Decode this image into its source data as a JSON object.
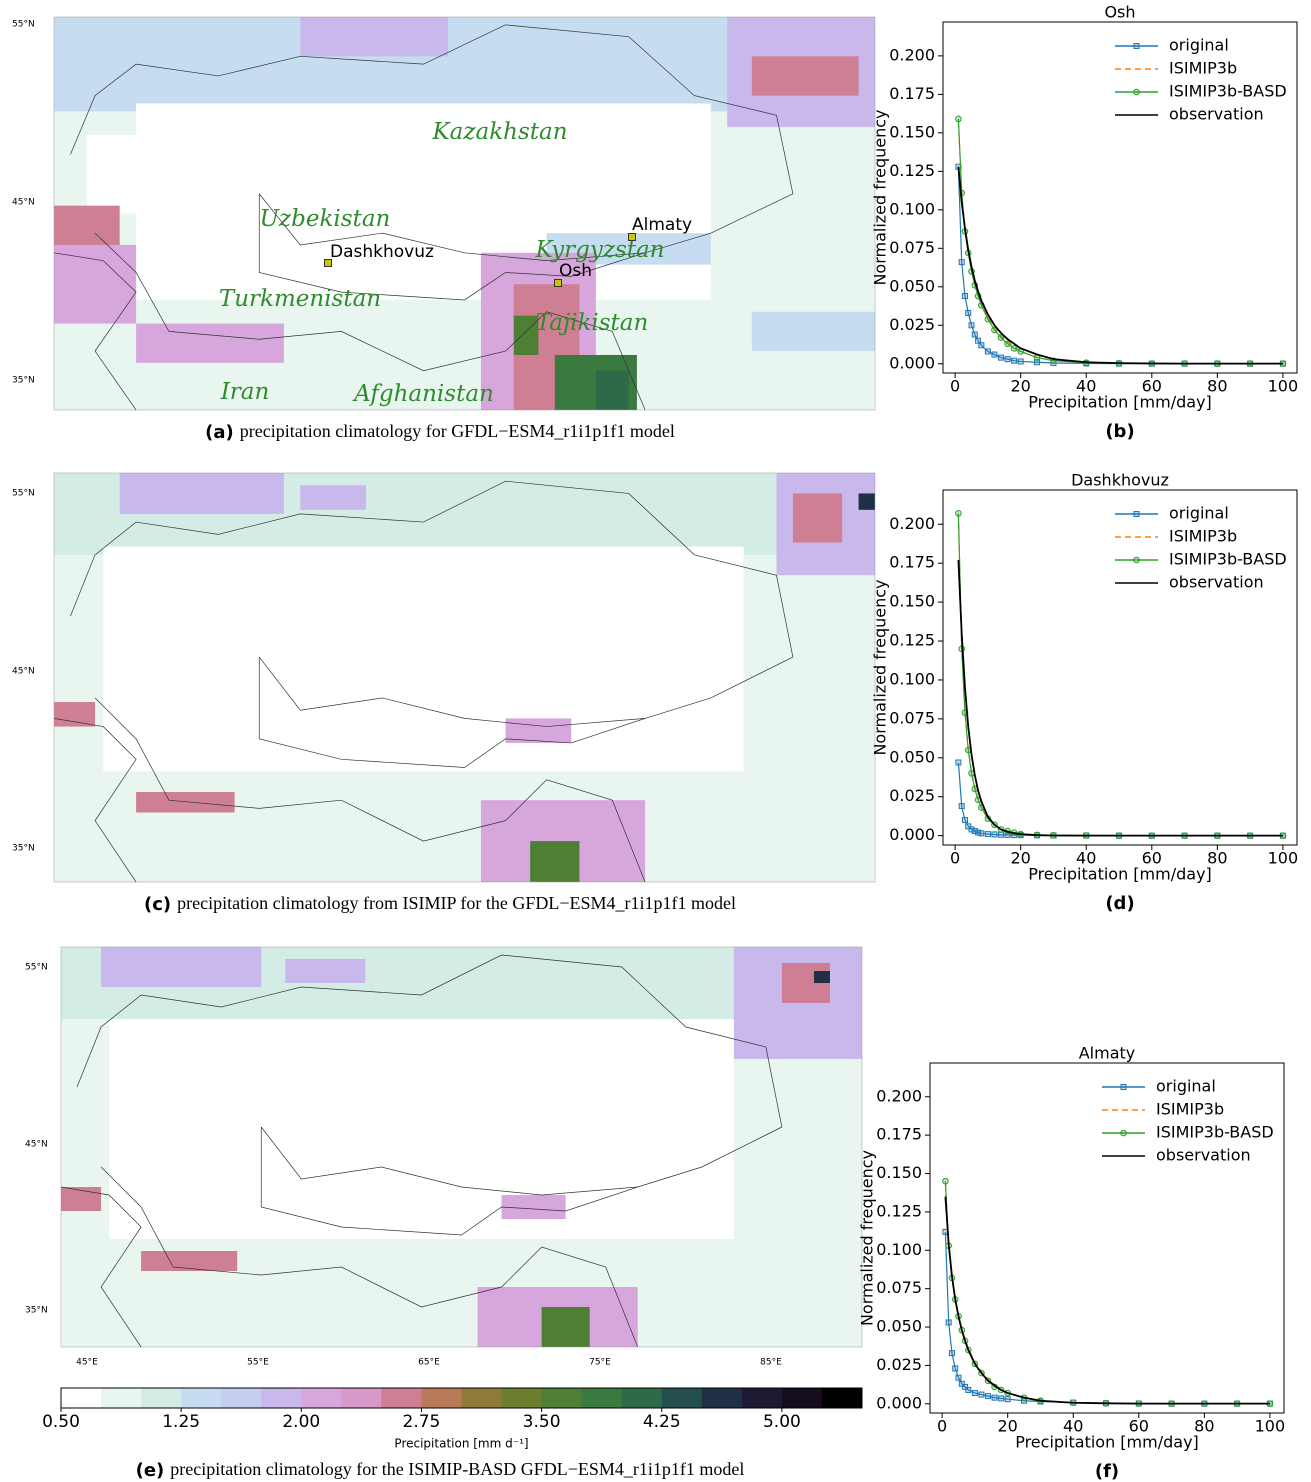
{
  "chart_data": [
    {
      "type": "line",
      "title": "Osh",
      "xlabel": "Precipitation [mm/day]",
      "ylabel": "Normalized frequency",
      "panel": "(b)",
      "x": [
        1,
        2,
        3,
        4,
        5,
        6,
        7,
        8,
        10,
        12,
        14,
        16,
        18,
        20,
        25,
        30,
        40,
        50,
        60,
        70,
        80,
        90,
        100
      ],
      "xlim": [
        -3.7,
        104.3
      ],
      "ylim": [
        -0.006,
        0.222
      ],
      "xticks": [
        0,
        20,
        40,
        60,
        80,
        100
      ],
      "yticks": [
        {
          "value": 0,
          "label": "0.000"
        },
        {
          "value": 0.025,
          "label": "0.025"
        },
        {
          "value": 0.05,
          "label": "0.050"
        },
        {
          "value": 0.075,
          "label": "0.075"
        },
        {
          "value": 0.1,
          "label": "0.100"
        },
        {
          "value": 0.125,
          "label": "0.125"
        },
        {
          "value": 0.15,
          "label": "0.150"
        },
        {
          "value": 0.175,
          "label": "0.175"
        },
        {
          "value": 0.2,
          "label": "0.200"
        }
      ],
      "legend": "upper right",
      "series": [
        {
          "name": "original",
          "color": "#1f77b4",
          "marker": "square",
          "dash": false,
          "values": [
            0.128,
            0.066,
            0.044,
            0.033,
            0.025,
            0.019,
            0.015,
            0.012,
            0.008,
            0.006,
            0.004,
            0.003,
            0.002,
            0.0015,
            0.001,
            0.0005,
            0.0002,
            0.0001,
            0.0001,
            0.0001,
            0.0001,
            0.0001,
            0.0001
          ]
        },
        {
          "name": "ISIMIP3b",
          "color": "#ff7f0e",
          "marker": null,
          "dash": true,
          "values": [
            0.157,
            0.112,
            0.087,
            0.073,
            0.061,
            0.052,
            0.045,
            0.039,
            0.03,
            0.023,
            0.018,
            0.014,
            0.011,
            0.008,
            0.004,
            0.002,
            0.0007,
            0.0003,
            0.0001,
            0.0001,
            0.0001,
            0.0001,
            0.0001
          ]
        },
        {
          "name": "ISIMIP3b-BASD",
          "color": "#2ca02c",
          "marker": "circle",
          "dash": false,
          "values": [
            0.159,
            0.111,
            0.086,
            0.072,
            0.06,
            0.051,
            0.044,
            0.038,
            0.029,
            0.022,
            0.017,
            0.013,
            0.01,
            0.008,
            0.004,
            0.002,
            0.0007,
            0.0003,
            0.0001,
            0.0001,
            0.0001,
            0.0001,
            0.0001
          ]
        },
        {
          "name": "observation",
          "color": "#000000",
          "marker": null,
          "dash": false,
          "values": [
            0.128,
            0.105,
            0.088,
            0.074,
            0.063,
            0.054,
            0.047,
            0.041,
            0.032,
            0.025,
            0.02,
            0.016,
            0.013,
            0.01,
            0.006,
            0.003,
            0.001,
            0.0004,
            0.0002,
            0.0001,
            0.0001,
            0.0001,
            0.0001
          ]
        }
      ]
    },
    {
      "type": "line",
      "title": "Dashkhovuz",
      "xlabel": "Precipitation [mm/day]",
      "ylabel": "Normalized frequency",
      "panel": "(d)",
      "x": [
        1,
        2,
        3,
        4,
        5,
        6,
        7,
        8,
        10,
        12,
        14,
        16,
        18,
        20,
        25,
        30,
        40,
        50,
        60,
        70,
        80,
        90,
        100
      ],
      "xlim": [
        -3.7,
        104.3
      ],
      "ylim": [
        -0.006,
        0.222
      ],
      "xticks": [
        0,
        20,
        40,
        60,
        80,
        100
      ],
      "yticks": [
        {
          "value": 0,
          "label": "0.000"
        },
        {
          "value": 0.025,
          "label": "0.025"
        },
        {
          "value": 0.05,
          "label": "0.050"
        },
        {
          "value": 0.075,
          "label": "0.075"
        },
        {
          "value": 0.1,
          "label": "0.100"
        },
        {
          "value": 0.125,
          "label": "0.125"
        },
        {
          "value": 0.15,
          "label": "0.150"
        },
        {
          "value": 0.175,
          "label": "0.175"
        },
        {
          "value": 0.2,
          "label": "0.200"
        }
      ],
      "legend": "upper right",
      "series": [
        {
          "name": "original",
          "color": "#1f77b4",
          "marker": "square",
          "dash": false,
          "values": [
            0.047,
            0.019,
            0.01,
            0.006,
            0.004,
            0.003,
            0.002,
            0.0015,
            0.001,
            0.0008,
            0.0006,
            0.0005,
            0.0004,
            0.0003,
            0.0002,
            0.0001,
            0.0001,
            0,
            0,
            0,
            0,
            0,
            0
          ]
        },
        {
          "name": "ISIMIP3b",
          "color": "#ff7f0e",
          "marker": null,
          "dash": true,
          "values": [
            0.206,
            0.121,
            0.08,
            0.056,
            0.041,
            0.031,
            0.024,
            0.018,
            0.011,
            0.007,
            0.004,
            0.003,
            0.002,
            0.001,
            0.0005,
            0.0002,
            0.0001,
            0,
            0,
            0,
            0,
            0,
            0
          ]
        },
        {
          "name": "ISIMIP3b-BASD",
          "color": "#2ca02c",
          "marker": "circle",
          "dash": false,
          "values": [
            0.207,
            0.12,
            0.079,
            0.055,
            0.04,
            0.03,
            0.023,
            0.018,
            0.011,
            0.007,
            0.004,
            0.003,
            0.002,
            0.001,
            0.0005,
            0.0002,
            0.0001,
            0,
            0,
            0,
            0,
            0,
            0
          ]
        },
        {
          "name": "observation",
          "color": "#000000",
          "marker": null,
          "dash": false,
          "values": [
            0.177,
            0.13,
            0.095,
            0.07,
            0.052,
            0.039,
            0.029,
            0.022,
            0.012,
            0.007,
            0.004,
            0.0025,
            0.0015,
            0.001,
            0.0003,
            0.0001,
            0,
            0,
            0,
            0,
            0,
            0,
            0
          ]
        }
      ]
    },
    {
      "type": "line",
      "title": "Almaty",
      "xlabel": "Precipitation [mm/day]",
      "ylabel": "Normalized frequency",
      "panel": "(f)",
      "x": [
        1,
        2,
        3,
        4,
        5,
        6,
        7,
        8,
        10,
        12,
        14,
        16,
        18,
        20,
        25,
        30,
        40,
        50,
        60,
        70,
        80,
        90,
        100
      ],
      "xlim": [
        -3.7,
        104.3
      ],
      "ylim": [
        -0.006,
        0.222
      ],
      "xticks": [
        0,
        20,
        40,
        60,
        80,
        100
      ],
      "yticks": [
        {
          "value": 0,
          "label": "0.000"
        },
        {
          "value": 0.025,
          "label": "0.025"
        },
        {
          "value": 0.05,
          "label": "0.050"
        },
        {
          "value": 0.075,
          "label": "0.075"
        },
        {
          "value": 0.1,
          "label": "0.100"
        },
        {
          "value": 0.125,
          "label": "0.125"
        },
        {
          "value": 0.15,
          "label": "0.150"
        },
        {
          "value": 0.175,
          "label": "0.175"
        },
        {
          "value": 0.2,
          "label": "0.200"
        }
      ],
      "legend": "upper right",
      "series": [
        {
          "name": "original",
          "color": "#1f77b4",
          "marker": "square",
          "dash": false,
          "values": [
            0.112,
            0.053,
            0.033,
            0.023,
            0.017,
            0.013,
            0.011,
            0.009,
            0.007,
            0.006,
            0.005,
            0.004,
            0.0035,
            0.003,
            0.002,
            0.0015,
            0.0008,
            0.0004,
            0.0002,
            0.0001,
            0.0001,
            0.0001,
            0.0001
          ]
        },
        {
          "name": "ISIMIP3b",
          "color": "#ff7f0e",
          "marker": null,
          "dash": true,
          "values": [
            0.143,
            0.104,
            0.083,
            0.069,
            0.058,
            0.049,
            0.042,
            0.036,
            0.027,
            0.021,
            0.016,
            0.012,
            0.009,
            0.007,
            0.004,
            0.002,
            0.0007,
            0.0003,
            0.0001,
            0.0001,
            0.0001,
            0.0001,
            0.0001
          ]
        },
        {
          "name": "ISIMIP3b-BASD",
          "color": "#2ca02c",
          "marker": "circle",
          "dash": false,
          "values": [
            0.145,
            0.103,
            0.082,
            0.068,
            0.057,
            0.048,
            0.041,
            0.035,
            0.026,
            0.02,
            0.015,
            0.011,
            0.009,
            0.007,
            0.004,
            0.002,
            0.0007,
            0.0003,
            0.0001,
            0.0001,
            0.0001,
            0.0001,
            0.0001
          ]
        },
        {
          "name": "observation",
          "color": "#000000",
          "marker": null,
          "dash": false,
          "values": [
            0.135,
            0.104,
            0.083,
            0.068,
            0.057,
            0.048,
            0.041,
            0.035,
            0.026,
            0.02,
            0.015,
            0.012,
            0.009,
            0.007,
            0.004,
            0.002,
            0.0007,
            0.0003,
            0.0001,
            0.0001,
            0.0001,
            0.0001,
            0.0001
          ]
        }
      ]
    }
  ],
  "maps": [
    {
      "label": "(a)",
      "caption": "precipitation climatology for GFDL−ESM4_r1i1p1f1 model",
      "lat_labels": [
        "55°N",
        "45°N",
        "35°N"
      ],
      "countries": [
        "Kazakhstan",
        "Uzbekistan",
        "Turkmenistan",
        "Kyrgyzstan",
        "Tajikistan",
        "Iran",
        "Afghanistan"
      ],
      "cities": [
        "Almaty",
        "Dashkhovuz",
        "Osh"
      ]
    },
    {
      "label": "(c)",
      "caption": "precipitation climatology from ISIMIP for the GFDL−ESM4_r1i1p1f1 model",
      "lat_labels": [
        "55°N",
        "45°N",
        "35°N"
      ]
    },
    {
      "label": "(e)",
      "caption": "precipitation climatology for the ISIMIP-BASD GFDL−ESM4_r1i1p1f1 model",
      "lat_labels": [
        "55°N",
        "45°N",
        "35°N"
      ],
      "lon_labels": [
        "45°E",
        "55°E",
        "65°E",
        "75°E",
        "85°E"
      ]
    }
  ],
  "colorbar": {
    "label": "Precipitation [mm d⁻¹]",
    "lim": [
      0.5,
      5.5
    ],
    "ticks": [
      {
        "value": 0.5,
        "label": "0.50"
      },
      1.25,
      {
        "value": 2,
        "label": "2.00"
      },
      2.75,
      {
        "value": 3.5,
        "label": "3.50"
      },
      4.25,
      {
        "value": 5,
        "label": "5.00"
      }
    ],
    "colors": [
      "#ffffff",
      "#e8f6ef",
      "#d4ece6",
      "#c6dcf0",
      "#c5cdf0",
      "#c8b8ec",
      "#d6a6dc",
      "#d898c8",
      "#cf7f93",
      "#b97a5a",
      "#8f7a3a",
      "#6c7f30",
      "#4e7f34",
      "#3a7a3f",
      "#2c6a4a",
      "#254f4f",
      "#1f2f44",
      "#1f1a33",
      "#160d1c",
      "#000000"
    ]
  }
}
